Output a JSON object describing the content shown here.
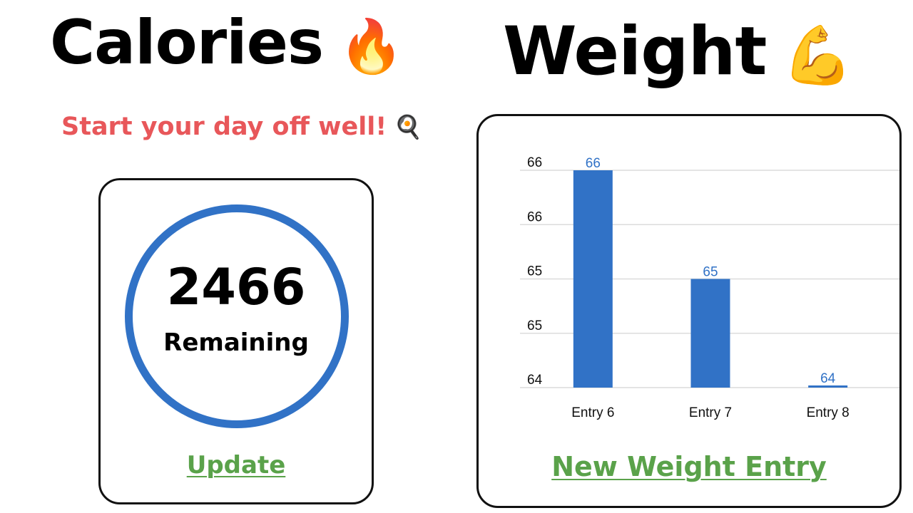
{
  "calories": {
    "title": "Calories",
    "title_icon": "fire-icon",
    "title_emoji": "🔥",
    "tagline": "Start your day off well!",
    "tagline_icon": "frying-pan-egg-icon",
    "tagline_emoji": "🍳",
    "remaining_value": "2466",
    "remaining_label": "Remaining",
    "update_link": "Update"
  },
  "weight": {
    "title": "Weight",
    "title_icon": "flexed-biceps-icon",
    "title_emoji": "💪",
    "new_entry_link": "New Weight Entry"
  },
  "colors": {
    "tagline": "#e8575a",
    "ring": "#3172c6",
    "bar": "#3172c6",
    "link": "#5aa24a"
  },
  "chart_data": {
    "type": "bar",
    "categories": [
      "Entry 6",
      "Entry 7",
      "Entry 8"
    ],
    "values": [
      66,
      65,
      64
    ],
    "value_labels": [
      "66",
      "65",
      "64"
    ],
    "y_ticks": [
      "64",
      "65",
      "65",
      "66",
      "66"
    ],
    "ylim": [
      64,
      66
    ],
    "grid": true,
    "legend": "none"
  }
}
